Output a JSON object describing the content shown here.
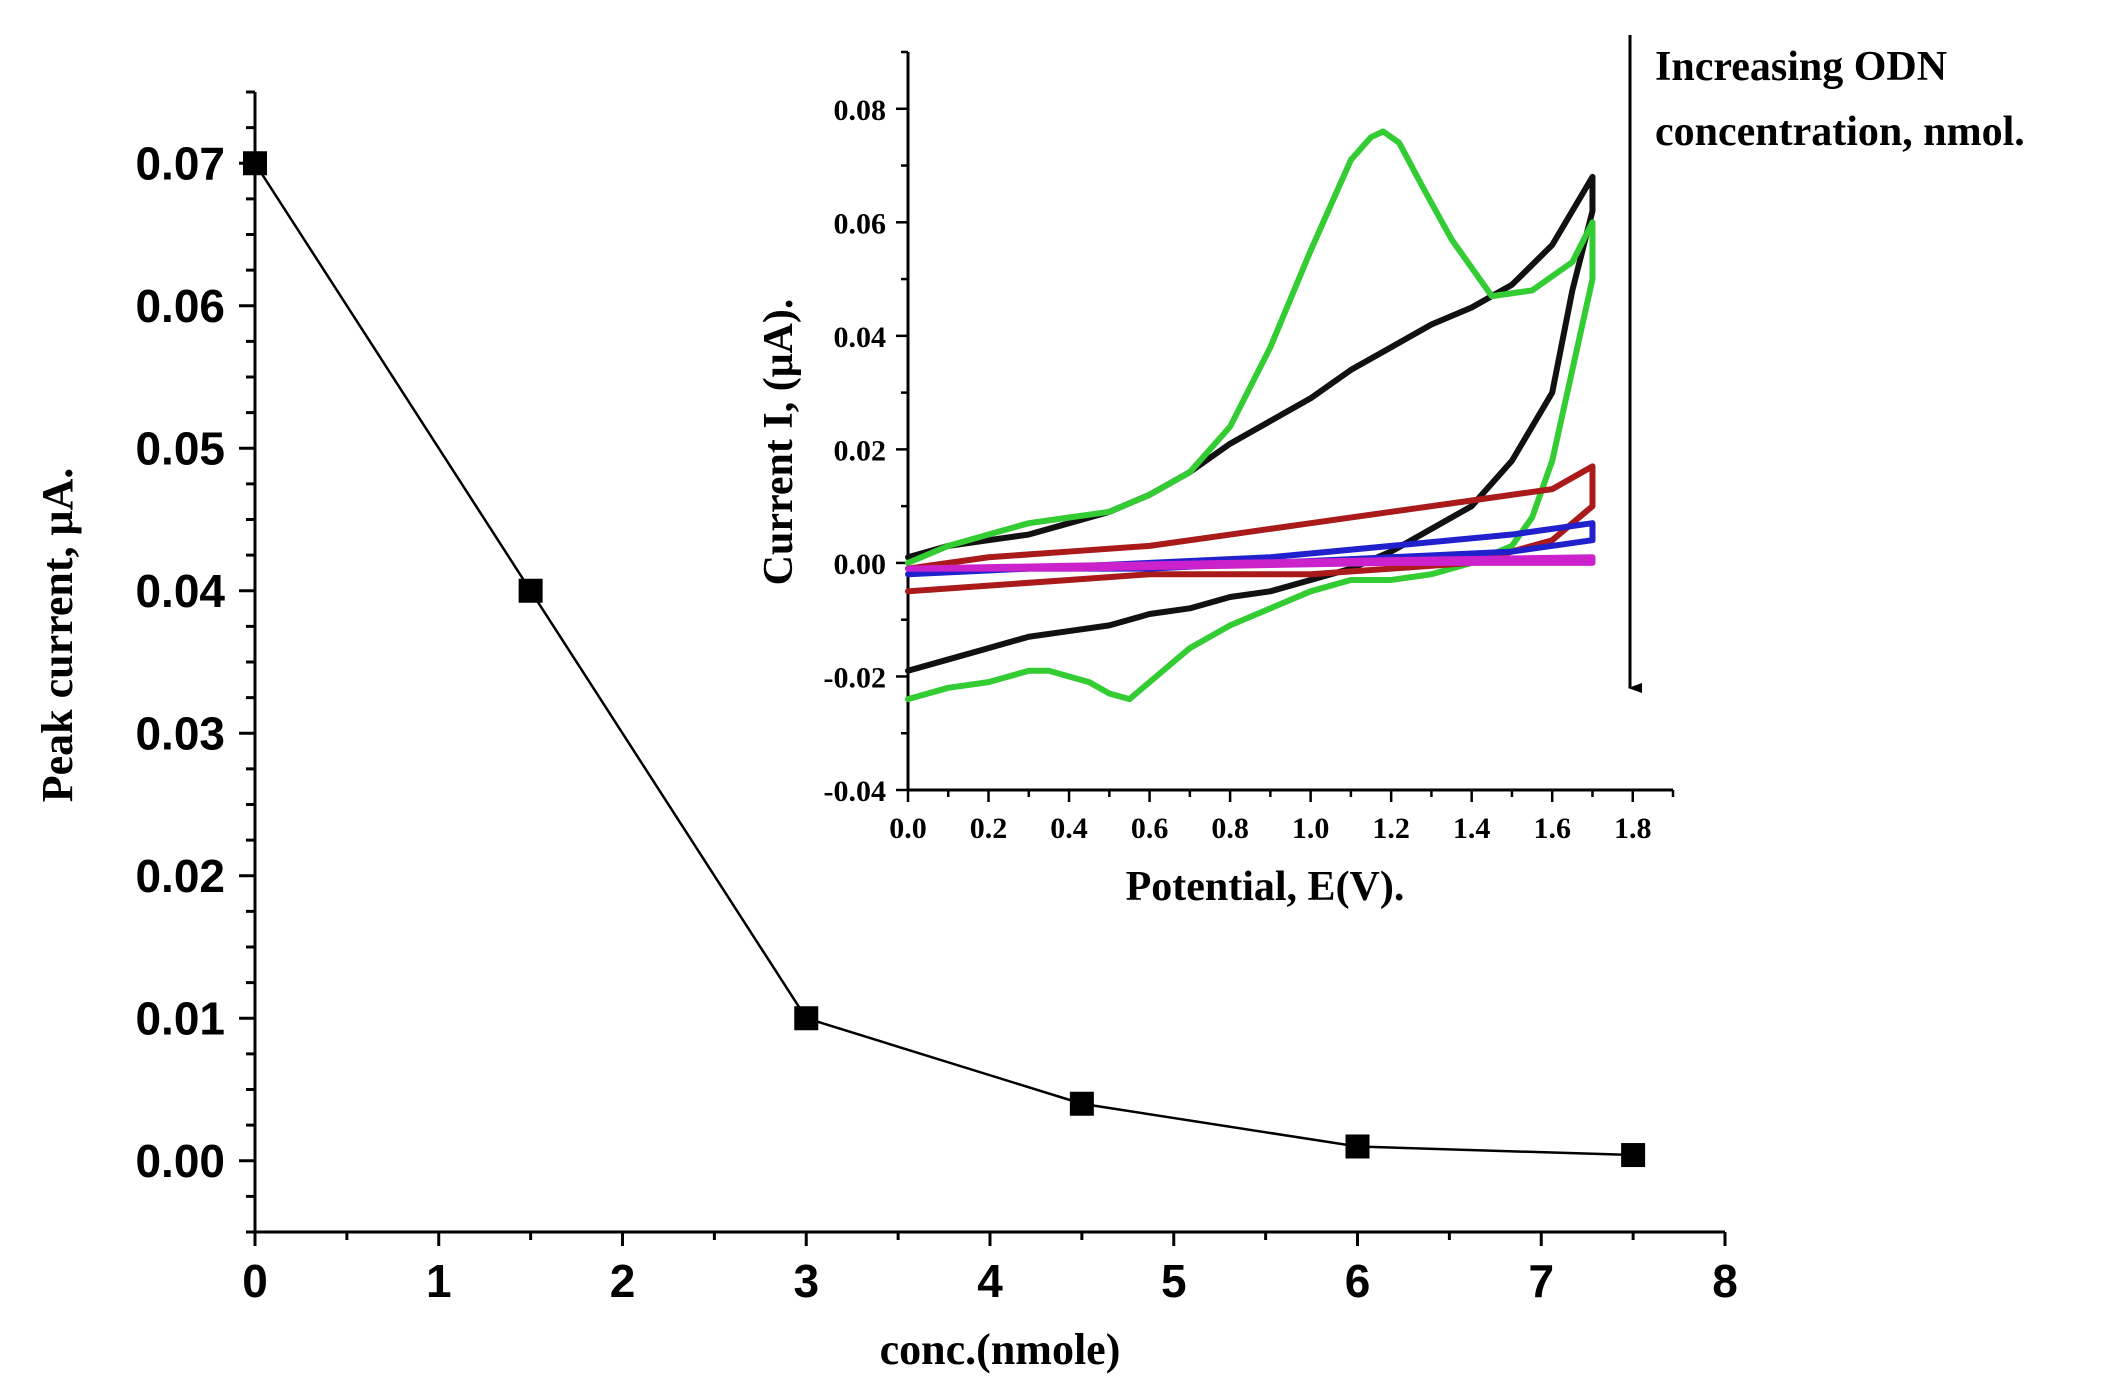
{
  "chart_data": [
    {
      "type": "line",
      "name": "main",
      "xlabel": "conc.(nmole)",
      "ylabel": "Peak current, μA.",
      "xlim": [
        0,
        8
      ],
      "ylim": [
        -0.005,
        0.075
      ],
      "x_ticks": [
        "0",
        "1",
        "2",
        "3",
        "4",
        "5",
        "6",
        "7",
        "8"
      ],
      "y_ticks": [
        "0.00",
        "0.01",
        "0.02",
        "0.03",
        "0.04",
        "0.05",
        "0.06",
        "0.07"
      ],
      "series": [
        {
          "name": "Peak current",
          "color": "#000000",
          "marker": "square",
          "x": [
            0,
            1.5,
            3,
            4.5,
            6,
            7.5
          ],
          "y": [
            0.07,
            0.04,
            0.01,
            0.004,
            0.001,
            0.0004
          ]
        }
      ]
    },
    {
      "type": "line",
      "name": "inset",
      "xlabel": "Potential, E(V).",
      "ylabel": "Current I, (μA).",
      "xlim": [
        0,
        1.9
      ],
      "ylim": [
        -0.04,
        0.09
      ],
      "x_ticks": [
        "0.0",
        "0.2",
        "0.4",
        "0.6",
        "0.8",
        "1.0",
        "1.2",
        "1.4",
        "1.6",
        "1.8"
      ],
      "y_ticks": [
        "-0.04",
        "-0.02",
        "0.00",
        "0.02",
        "0.04",
        "0.06",
        "0.08"
      ],
      "annotation": [
        "Increasing ODN",
        "concentration, nmol."
      ],
      "series": [
        {
          "name": "black",
          "color": "#111111",
          "x": [
            0.0,
            0.1,
            0.2,
            0.3,
            0.4,
            0.5,
            0.6,
            0.7,
            0.8,
            0.9,
            1.0,
            1.1,
            1.2,
            1.3,
            1.4,
            1.5,
            1.6,
            1.7,
            1.7,
            1.65,
            1.6,
            1.5,
            1.4,
            1.3,
            1.2,
            1.1,
            1.0,
            0.9,
            0.8,
            0.7,
            0.6,
            0.5,
            0.4,
            0.3,
            0.2,
            0.1,
            0.0
          ],
          "y": [
            0.001,
            0.003,
            0.004,
            0.005,
            0.007,
            0.009,
            0.012,
            0.016,
            0.021,
            0.025,
            0.029,
            0.034,
            0.038,
            0.042,
            0.045,
            0.049,
            0.056,
            0.068,
            0.062,
            0.048,
            0.03,
            0.018,
            0.01,
            0.006,
            0.002,
            -0.001,
            -0.003,
            -0.005,
            -0.006,
            -0.008,
            -0.009,
            -0.011,
            -0.012,
            -0.013,
            -0.015,
            -0.017,
            -0.019
          ]
        },
        {
          "name": "green",
          "color": "#33cc33",
          "x": [
            0.0,
            0.1,
            0.2,
            0.3,
            0.4,
            0.5,
            0.6,
            0.7,
            0.8,
            0.9,
            1.0,
            1.05,
            1.1,
            1.15,
            1.18,
            1.22,
            1.28,
            1.35,
            1.45,
            1.55,
            1.65,
            1.7,
            1.7,
            1.65,
            1.6,
            1.55,
            1.5,
            1.4,
            1.3,
            1.2,
            1.1,
            1.0,
            0.9,
            0.8,
            0.7,
            0.6,
            0.55,
            0.5,
            0.45,
            0.4,
            0.35,
            0.3,
            0.2,
            0.1,
            0.0
          ],
          "y": [
            0.0,
            0.003,
            0.005,
            0.007,
            0.008,
            0.009,
            0.012,
            0.016,
            0.024,
            0.038,
            0.055,
            0.063,
            0.071,
            0.075,
            0.076,
            0.074,
            0.066,
            0.057,
            0.047,
            0.048,
            0.053,
            0.06,
            0.05,
            0.034,
            0.018,
            0.008,
            0.003,
            0.0,
            -0.002,
            -0.003,
            -0.003,
            -0.005,
            -0.008,
            -0.011,
            -0.015,
            -0.021,
            -0.024,
            -0.023,
            -0.021,
            -0.02,
            -0.019,
            -0.019,
            -0.021,
            -0.022,
            -0.024
          ]
        },
        {
          "name": "red",
          "color": "#aa1a1a",
          "x": [
            0.0,
            0.2,
            0.4,
            0.6,
            0.8,
            1.0,
            1.2,
            1.4,
            1.6,
            1.7,
            1.7,
            1.6,
            1.4,
            1.2,
            1.0,
            0.8,
            0.6,
            0.4,
            0.2,
            0.0
          ],
          "y": [
            -0.001,
            0.001,
            0.002,
            0.003,
            0.005,
            0.007,
            0.009,
            0.011,
            0.013,
            0.017,
            0.01,
            0.004,
            0.0,
            -0.001,
            -0.002,
            -0.002,
            -0.002,
            -0.003,
            -0.004,
            -0.005
          ]
        },
        {
          "name": "blue",
          "color": "#2020cc",
          "x": [
            0.0,
            0.3,
            0.6,
            0.9,
            1.2,
            1.5,
            1.7,
            1.7,
            1.5,
            1.2,
            0.9,
            0.6,
            0.3,
            0.0
          ],
          "y": [
            -0.002,
            -0.001,
            0.0,
            0.001,
            0.003,
            0.005,
            0.007,
            0.004,
            0.002,
            0.001,
            0.0,
            -0.001,
            -0.001,
            -0.002
          ]
        },
        {
          "name": "magenta",
          "color": "#cc22cc",
          "x": [
            0.0,
            0.4,
            0.8,
            1.2,
            1.7,
            1.7,
            1.2,
            0.8,
            0.4,
            0.0
          ],
          "y": [
            -0.001,
            -0.0005,
            0.0,
            0.0005,
            0.001,
            0.0,
            0.0,
            -0.0005,
            -0.001,
            -0.001
          ]
        }
      ]
    }
  ]
}
